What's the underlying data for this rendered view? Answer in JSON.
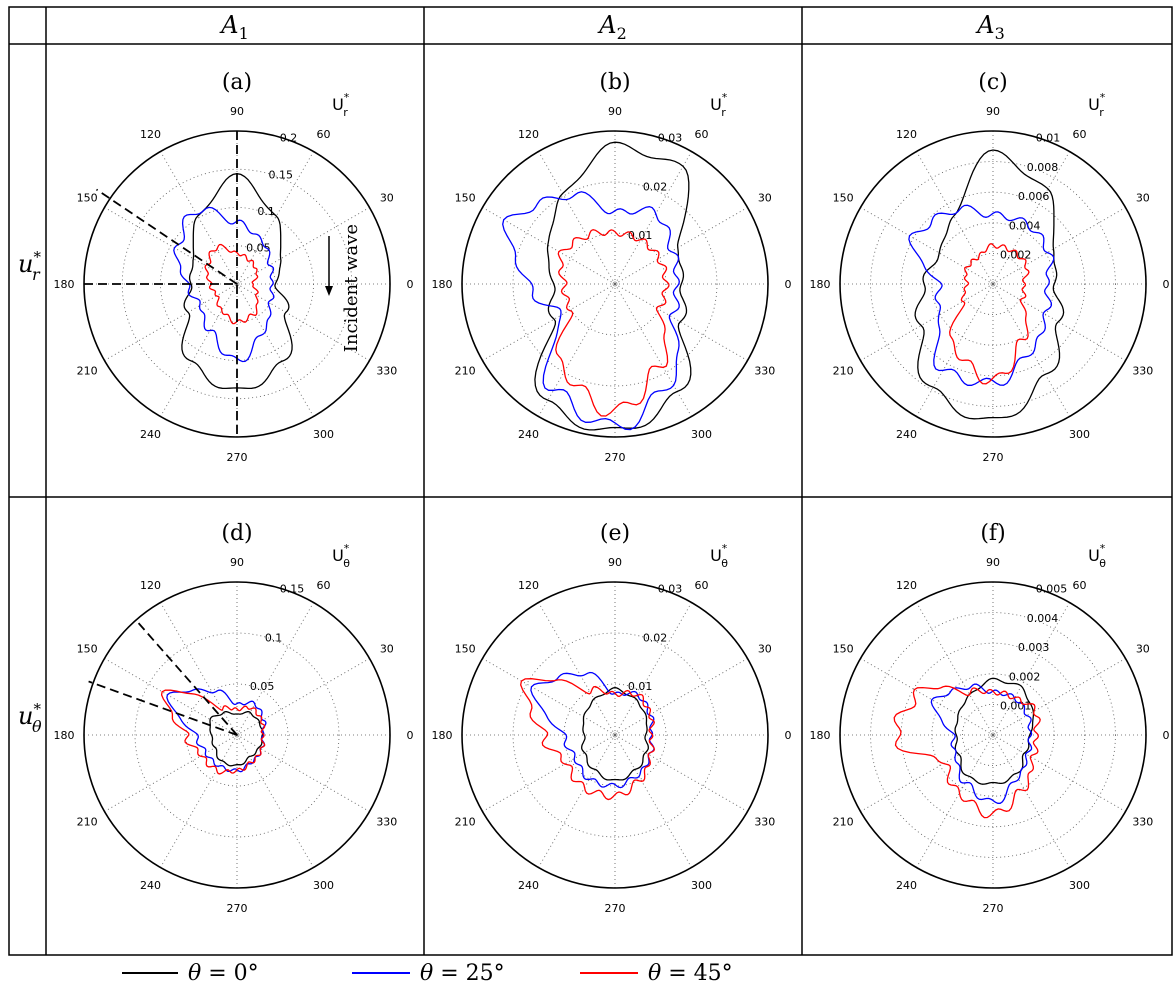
{
  "columns": [
    {
      "letter": "A",
      "sub": "1"
    },
    {
      "letter": "A",
      "sub": "2"
    },
    {
      "letter": "A",
      "sub": "3"
    }
  ],
  "rows": [
    {
      "letter": "u",
      "sup": "*",
      "sub": "r"
    },
    {
      "letter": "u",
      "sup": "*",
      "sub": "θ"
    }
  ],
  "legend": [
    {
      "prefix": "θ = ",
      "value": "0°",
      "color": "#000000"
    },
    {
      "prefix": "θ = ",
      "value": "25°",
      "color": "#0000ff"
    },
    {
      "prefix": "θ = ",
      "value": "45°",
      "color": "#ff0000"
    }
  ],
  "colors": {
    "theta0": "#000000",
    "theta25": "#0000ff",
    "theta45": "#ff0000",
    "grid": "#555555"
  },
  "chart_data": [
    {
      "type": "polar-line",
      "panel": "(a)",
      "rlabel": {
        "base": "U",
        "sup": "*",
        "sub": "r"
      },
      "rmax": 0.2,
      "rticks": [
        0.05,
        0.1,
        0.15,
        0.2
      ],
      "rtick_labels": [
        "0.05",
        "0.1",
        "0.15",
        "0.2"
      ],
      "angle_ticks": [
        0,
        30,
        60,
        90,
        120,
        150,
        180,
        210,
        240,
        270,
        300,
        330
      ],
      "annotation": "Incident wave",
      "series": [
        {
          "name": "θ = 0°",
          "angles": [
            0,
            30,
            60,
            90,
            120,
            150,
            180,
            210,
            240,
            270,
            300,
            330
          ],
          "values": [
            0.05,
            0.065,
            0.1,
            0.14,
            0.1,
            0.065,
            0.06,
            0.075,
            0.12,
            0.14,
            0.12,
            0.075
          ]
        },
        {
          "name": "θ = 25°",
          "angles": [
            0,
            30,
            60,
            90,
            120,
            150,
            180,
            210,
            240,
            270,
            300,
            330
          ],
          "values": [
            0.045,
            0.05,
            0.065,
            0.08,
            0.11,
            0.09,
            0.065,
            0.055,
            0.07,
            0.1,
            0.07,
            0.05
          ]
        },
        {
          "name": "θ = 45°",
          "angles": [
            0,
            30,
            60,
            90,
            120,
            150,
            180,
            210,
            240,
            270,
            300,
            330
          ],
          "values": [
            0.02,
            0.03,
            0.035,
            0.04,
            0.055,
            0.045,
            0.035,
            0.03,
            0.04,
            0.05,
            0.045,
            0.03
          ]
        }
      ]
    },
    {
      "type": "polar-line",
      "panel": "(b)",
      "rlabel": {
        "base": "U",
        "sup": "*",
        "sub": "r"
      },
      "rmax": 0.03,
      "rticks": [
        0.01,
        0.02,
        0.03
      ],
      "rtick_labels": [
        "0.01",
        "0.02",
        "0.03"
      ],
      "angle_ticks": [
        0,
        30,
        60,
        90,
        120,
        150,
        180,
        210,
        240,
        270,
        300,
        330
      ],
      "series": [
        {
          "name": "θ = 0°",
          "angles": [
            0,
            30,
            60,
            90,
            120,
            150,
            180,
            210,
            240,
            270,
            300,
            330
          ],
          "values": [
            0.013,
            0.014,
            0.026,
            0.027,
            0.02,
            0.015,
            0.012,
            0.014,
            0.027,
            0.029,
            0.025,
            0.015
          ]
        },
        {
          "name": "θ = 25°",
          "angles": [
            0,
            30,
            60,
            90,
            120,
            150,
            180,
            210,
            240,
            270,
            300,
            330
          ],
          "values": [
            0.012,
            0.013,
            0.016,
            0.014,
            0.02,
            0.024,
            0.017,
            0.012,
            0.024,
            0.028,
            0.022,
            0.013
          ]
        },
        {
          "name": "θ = 45°",
          "angles": [
            0,
            30,
            60,
            90,
            120,
            150,
            180,
            210,
            240,
            270,
            300,
            330
          ],
          "values": [
            0.01,
            0.01,
            0.01,
            0.01,
            0.011,
            0.012,
            0.01,
            0.01,
            0.02,
            0.025,
            0.018,
            0.01
          ]
        }
      ]
    },
    {
      "type": "polar-line",
      "panel": "(c)",
      "rlabel": {
        "base": "U",
        "sup": "*",
        "sub": "r"
      },
      "rmax": 0.01,
      "rticks": [
        0.002,
        0.004,
        0.006,
        0.008,
        0.01
      ],
      "rtick_labels": [
        "0.002",
        "0.004",
        "0.006",
        "0.008",
        "0.01"
      ],
      "angle_ticks": [
        0,
        30,
        60,
        90,
        120,
        150,
        180,
        210,
        240,
        270,
        300,
        330
      ],
      "series": [
        {
          "name": "θ = 0°",
          "angles": [
            0,
            30,
            60,
            90,
            120,
            150,
            180,
            210,
            240,
            270,
            300,
            330
          ],
          "values": [
            0.004,
            0.0045,
            0.007,
            0.0085,
            0.005,
            0.004,
            0.0045,
            0.0055,
            0.008,
            0.009,
            0.007,
            0.005
          ]
        },
        {
          "name": "θ = 25°",
          "angles": [
            0,
            30,
            60,
            90,
            120,
            150,
            180,
            210,
            240,
            270,
            300,
            330
          ],
          "values": [
            0.0035,
            0.0042,
            0.0045,
            0.0045,
            0.0055,
            0.006,
            0.0035,
            0.004,
            0.0065,
            0.0065,
            0.005,
            0.004
          ]
        },
        {
          "name": "θ = 45°",
          "angles": [
            0,
            30,
            60,
            90,
            120,
            150,
            180,
            210,
            240,
            270,
            300,
            330
          ],
          "values": [
            0.002,
            0.0025,
            0.0025,
            0.0025,
            0.002,
            0.002,
            0.0017,
            0.0022,
            0.005,
            0.0063,
            0.004,
            0.0022
          ]
        }
      ]
    },
    {
      "type": "polar-line",
      "panel": "(d)",
      "rlabel": {
        "base": "U",
        "sup": "*",
        "sub": "θ"
      },
      "rmax": 0.15,
      "rticks": [
        0.05,
        0.1,
        0.15
      ],
      "rtick_labels": [
        "0.05",
        "0.1",
        "0.15"
      ],
      "angle_ticks": [
        0,
        30,
        60,
        90,
        120,
        150,
        180,
        210,
        240,
        270,
        300,
        330
      ],
      "series": [
        {
          "name": "θ = 0°",
          "angles": [
            0,
            30,
            60,
            90,
            120,
            150,
            180,
            210,
            240,
            270,
            300,
            330
          ],
          "values": [
            0.025,
            0.025,
            0.025,
            0.02,
            0.025,
            0.03,
            0.025,
            0.025,
            0.03,
            0.03,
            0.025,
            0.025
          ]
        },
        {
          "name": "θ = 25°",
          "angles": [
            0,
            30,
            60,
            90,
            120,
            150,
            180,
            210,
            240,
            270,
            300,
            330
          ],
          "values": [
            0.025,
            0.03,
            0.035,
            0.03,
            0.05,
            0.075,
            0.04,
            0.035,
            0.035,
            0.035,
            0.03,
            0.028
          ]
        },
        {
          "name": "θ = 45°",
          "angles": [
            0,
            30,
            60,
            90,
            120,
            150,
            180,
            210,
            240,
            270,
            300,
            330
          ],
          "values": [
            0.025,
            0.028,
            0.03,
            0.025,
            0.03,
            0.08,
            0.05,
            0.04,
            0.04,
            0.035,
            0.03,
            0.028
          ]
        }
      ]
    },
    {
      "type": "polar-line",
      "panel": "(e)",
      "rlabel": {
        "base": "U",
        "sup": "*",
        "sub": "θ"
      },
      "rmax": 0.03,
      "rticks": [
        0.01,
        0.02,
        0.03
      ],
      "rtick_labels": [
        "0.01",
        "0.02",
        "0.03"
      ],
      "angle_ticks": [
        0,
        30,
        60,
        90,
        120,
        150,
        180,
        210,
        240,
        270,
        300,
        330
      ],
      "series": [
        {
          "name": "θ = 0°",
          "angles": [
            0,
            30,
            60,
            90,
            120,
            150,
            180,
            210,
            240,
            270,
            300,
            330
          ],
          "values": [
            0.006,
            0.007,
            0.008,
            0.009,
            0.008,
            0.007,
            0.006,
            0.007,
            0.008,
            0.009,
            0.008,
            0.007
          ]
        },
        {
          "name": "θ = 25°",
          "angles": [
            0,
            30,
            60,
            90,
            120,
            150,
            180,
            210,
            240,
            270,
            300,
            330
          ],
          "values": [
            0.007,
            0.008,
            0.009,
            0.008,
            0.014,
            0.018,
            0.01,
            0.009,
            0.01,
            0.01,
            0.009,
            0.008
          ]
        },
        {
          "name": "θ = 45°",
          "angles": [
            0,
            30,
            60,
            90,
            120,
            150,
            180,
            210,
            240,
            270,
            300,
            330
          ],
          "values": [
            0.007,
            0.008,
            0.009,
            0.008,
            0.01,
            0.02,
            0.014,
            0.011,
            0.012,
            0.012,
            0.01,
            0.008
          ]
        }
      ]
    },
    {
      "type": "polar-line",
      "panel": "(f)",
      "rlabel": {
        "base": "U",
        "sup": "*",
        "sub": "θ"
      },
      "rmax": 0.005,
      "rticks": [
        0.001,
        0.002,
        0.003,
        0.004,
        0.005
      ],
      "rtick_labels": [
        "0.001",
        "0.002",
        "0.003",
        "0.004",
        "0.005"
      ],
      "angle_ticks": [
        0,
        30,
        60,
        90,
        120,
        150,
        180,
        210,
        240,
        270,
        300,
        330
      ],
      "series": [
        {
          "name": "θ = 0°",
          "angles": [
            0,
            30,
            60,
            90,
            120,
            150,
            180,
            210,
            240,
            270,
            300,
            330
          ],
          "values": [
            0.0012,
            0.0015,
            0.0018,
            0.0018,
            0.0015,
            0.0013,
            0.0012,
            0.0013,
            0.0016,
            0.0016,
            0.0015,
            0.0012
          ]
        },
        {
          "name": "θ = 25°",
          "angles": [
            0,
            30,
            60,
            90,
            120,
            150,
            180,
            210,
            240,
            270,
            300,
            330
          ],
          "values": [
            0.0012,
            0.0013,
            0.0014,
            0.0014,
            0.0018,
            0.0022,
            0.0013,
            0.0014,
            0.0018,
            0.0022,
            0.0016,
            0.0013
          ]
        },
        {
          "name": "θ = 45°",
          "angles": [
            0,
            30,
            60,
            90,
            120,
            150,
            180,
            210,
            240,
            270,
            300,
            330
          ],
          "values": [
            0.0014,
            0.0016,
            0.0014,
            0.0014,
            0.0016,
            0.0028,
            0.0032,
            0.0018,
            0.0022,
            0.0026,
            0.002,
            0.0015
          ]
        }
      ]
    }
  ]
}
